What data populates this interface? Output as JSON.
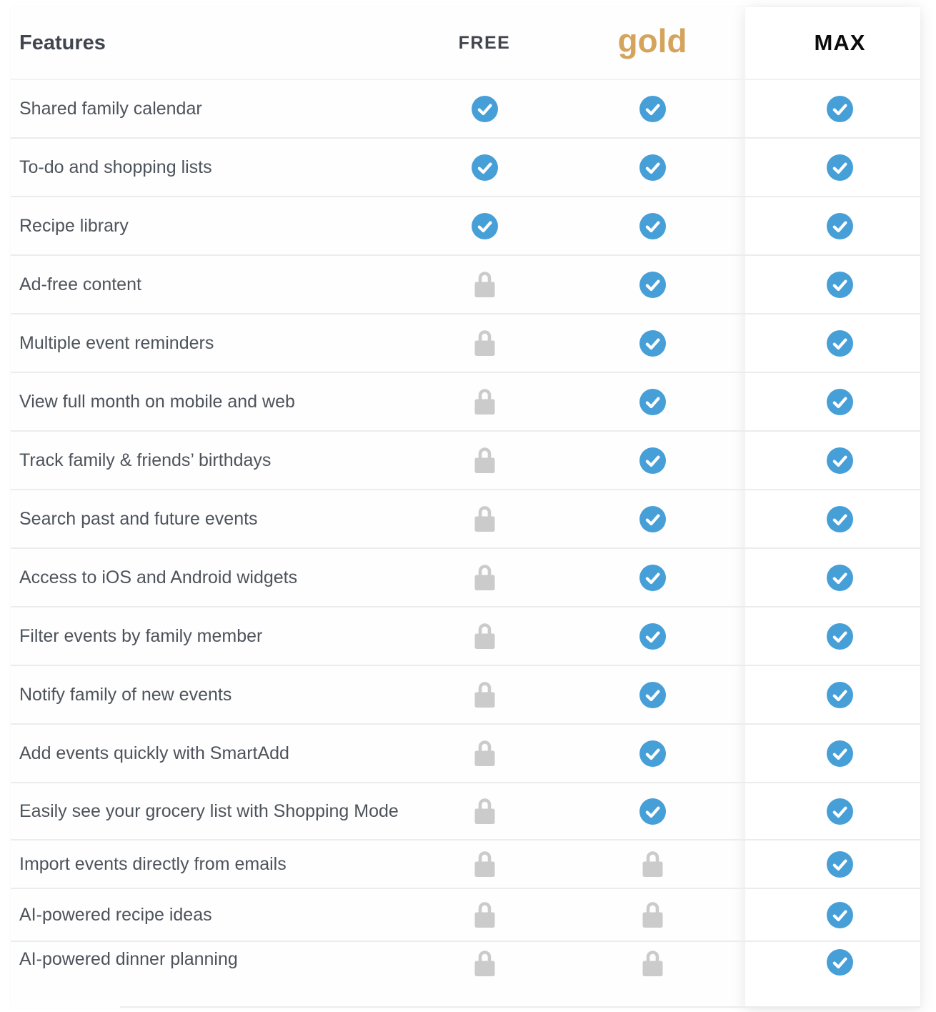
{
  "table": {
    "features_header": "Features",
    "columns": [
      {
        "id": "free",
        "label": "FREE"
      },
      {
        "id": "gold",
        "label": "gold"
      },
      {
        "id": "max",
        "label": "MAX"
      }
    ],
    "rows": [
      {
        "feature": "Shared family calendar",
        "free": "included",
        "gold": "included",
        "max": "included"
      },
      {
        "feature": "To-do and shopping lists",
        "free": "included",
        "gold": "included",
        "max": "included"
      },
      {
        "feature": "Recipe library",
        "free": "included",
        "gold": "included",
        "max": "included"
      },
      {
        "feature": "Ad-free content",
        "free": "locked",
        "gold": "included",
        "max": "included"
      },
      {
        "feature": "Multiple event reminders",
        "free": "locked",
        "gold": "included",
        "max": "included"
      },
      {
        "feature": "View full month on mobile and web",
        "free": "locked",
        "gold": "included",
        "max": "included"
      },
      {
        "feature": "Track family & friends’ birthdays",
        "free": "locked",
        "gold": "included",
        "max": "included"
      },
      {
        "feature": "Search past and future events",
        "free": "locked",
        "gold": "included",
        "max": "included"
      },
      {
        "feature": "Access to iOS and Android widgets",
        "free": "locked",
        "gold": "included",
        "max": "included"
      },
      {
        "feature": "Filter events by family member",
        "free": "locked",
        "gold": "included",
        "max": "included"
      },
      {
        "feature": "Notify family of new events",
        "free": "locked",
        "gold": "included",
        "max": "included"
      },
      {
        "feature": "Add events quickly with SmartAdd",
        "free": "locked",
        "gold": "included",
        "max": "included"
      },
      {
        "feature": "Easily see your grocery list with Shopping Mode",
        "free": "locked",
        "gold": "included",
        "max": "included"
      },
      {
        "feature": "Import events directly from emails",
        "free": "locked",
        "gold": "locked",
        "max": "included"
      },
      {
        "feature": "AI-powered recipe ideas",
        "free": "locked",
        "gold": "locked",
        "max": "included"
      },
      {
        "feature": "AI-powered dinner planning",
        "free": "locked",
        "gold": "locked",
        "max": "included"
      }
    ]
  },
  "icons": {
    "included": "check-circle-icon",
    "locked": "lock-icon"
  },
  "colors": {
    "check_blue": "#479fd8",
    "lock_gray": "#cbcbcb",
    "gold_brand": "#d5a45c",
    "header_text": "#41464e",
    "feature_text": "#4d535b",
    "max_text": "#0b0b0b"
  }
}
